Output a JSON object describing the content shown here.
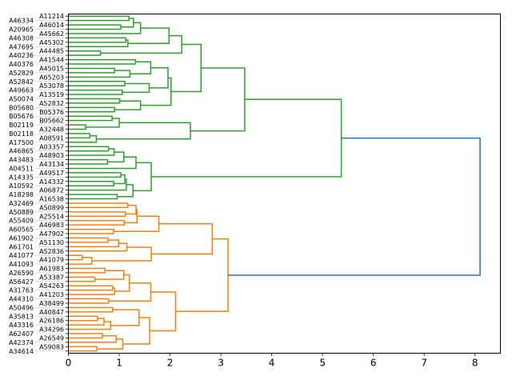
{
  "chart_data": {
    "type": "dendrogram",
    "orientation": "right",
    "title": "",
    "xlabel": "",
    "ylabel": "",
    "xlim": [
      0,
      8.5
    ],
    "x_ticks": [
      0,
      1,
      2,
      3,
      4,
      5,
      6,
      7,
      8
    ],
    "colors": {
      "above_threshold": "#1f77b4",
      "clusters": [
        "#2ca02c",
        "#ff7f0e"
      ]
    },
    "leaves": [
      "A11214",
      "A46334",
      "A46014",
      "A20965",
      "A45662",
      "A46308",
      "A45302",
      "A47695",
      "A44485",
      "A40236",
      "A41544",
      "A40376",
      "A45015",
      "A52829",
      "A65203",
      "A52842",
      "A53078",
      "A49663",
      "A13519",
      "A50074",
      "A52832",
      "B05680",
      "B05376",
      "B05676",
      "B05662",
      "B02119",
      "A32448",
      "B02118",
      "A08591",
      "A17500",
      "A03357",
      "A46865",
      "A48903",
      "A43483",
      "A43134",
      "A04511",
      "A49517",
      "A14335",
      "A14332",
      "A10592",
      "A06872",
      "A18298",
      "A16538",
      "A32469",
      "A50899",
      "A50889",
      "A25514",
      "A55409",
      "A46983",
      "A60565",
      "A47902",
      "A61902",
      "A51130",
      "A61701",
      "A52836",
      "A41077",
      "A41079",
      "A41093",
      "A61983",
      "A26590",
      "A53387",
      "A56427",
      "A54263",
      "A31763",
      "A41203",
      "A44310",
      "A38499",
      "A50496",
      "A40847",
      "A35813",
      "A26186",
      "A43316",
      "A34296",
      "A62407",
      "A26549",
      "A42374",
      "A59083",
      "A34614"
    ],
    "tree_format": "[distance, left, right]; integer = leaf index",
    "tree": [
      8.1,
      [
        5.37,
        [
          3.47,
          [
            2.61,
            [
              2.23,
              [
                1.98,
                [
                  1.42,
                  [
                    1.28,
                    [
                      1.19,
                      0,
                      1
                    ],
                    [
                      1.03,
                      2,
                      3
                    ]
                  ],
                  4
                ],
                [
                  1.17,
                  [
                    1.13,
                    5,
                    6
                  ],
                  7
                ]
              ],
              [
                0.63,
                8,
                9
              ]
            ],
            [
              2.02,
              [
                1.96,
                [
                  1.62,
                  [
                    1.32,
                    10,
                    11
                  ],
                  [
                    1.21,
                    [
                      0.91,
                      12,
                      13
                    ],
                    14
                  ]
                ],
                [
                  1.59,
                  [
                    1.11,
                    15,
                    16
                  ],
                  [
                    1.06,
                    17,
                    18
                  ]
                ]
              ],
              [
                1.42,
                [
                  1.01,
                  19,
                  20
                ],
                [
                  0.91,
                  21,
                  22
                ]
              ]
            ]
          ],
          [
            2.4,
            [
              1.0,
              [
                0.86,
                23,
                24
              ],
              [
                0.34,
                25,
                26
              ]
            ],
            [
              0.55,
              [
                0.42,
                27,
                28
              ],
              29
            ]
          ]
        ],
        [
          1.63,
          [
            1.33,
            [
              1.09,
              [
                0.9,
                [
                  0.79,
                  30,
                  31
                ],
                32
              ],
              [
                0.77,
                33,
                34
              ]
            ],
            35
          ],
          [
            1.27,
            [
              1.14,
              [
                1.11,
                [
                  1.03,
                  36,
                  37
                ],
                [
                  0.89,
                  38,
                  39
                ]
              ],
              40
            ],
            [
              0.96,
              41,
              42
            ]
          ]
        ]
      ],
      [
        3.14,
        [
          2.83,
          [
            1.78,
            [
              1.35,
              [
                1.33,
                [
                  1.17,
                  43,
                  44
                ],
                [
                  1.12,
                  45,
                  46
                ]
              ],
              [
                1.1,
                47,
                48
              ]
            ],
            [
              0.89,
              49,
              50
            ]
          ],
          [
            1.63,
            [
              1.15,
              [
                0.99,
                [
                  0.78,
                  51,
                  52
                ],
                53
              ],
              54
            ],
            [
              0.46,
              [
                0.27,
                55,
                56
              ],
              57
            ]
          ]
        ],
        [
          2.11,
          [
            1.62,
            [
              1.2,
              [
                1.09,
                [
                  0.72,
                  58,
                  59
                ],
                [
                  0.52,
                  60,
                  61
                ]
              ],
              [
                0.91,
                [
                  0.87,
                  62,
                  63
                ],
                64
              ]
            ],
            [
              0.79,
              65,
              66
            ]
          ],
          [
            1.6,
            [
              1.39,
              [
                0.87,
                67,
                68
              ],
              [
                0.83,
                [
                  0.7,
                  [
                    0.57,
                    69,
                    70
                  ],
                  71
                ],
                72
              ]
            ],
            [
              1.07,
              [
                0.94,
                [
                  0.67,
                  73,
                  74
                ],
                75
              ],
              [
                0.56,
                76,
                77
              ]
            ]
          ]
        ]
      ]
    ]
  }
}
